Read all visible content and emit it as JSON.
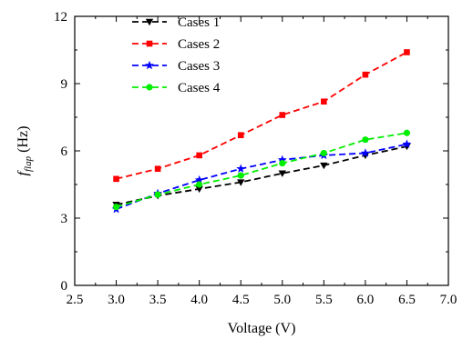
{
  "chart_data": {
    "type": "line",
    "xlabel": "Voltage (V)",
    "ylabel": {
      "base": "f",
      "subscript": "flap",
      "unit": " (Hz)"
    },
    "xlim": [
      2.5,
      7.0
    ],
    "ylim": [
      0,
      12
    ],
    "x_ticks": [
      "2.5",
      "3.0",
      "3.5",
      "4.0",
      "4.5",
      "5.0",
      "5.5",
      "6.0",
      "6.5",
      "7.0"
    ],
    "y_ticks": [
      "0",
      "3",
      "6",
      "9",
      "12"
    ],
    "grid": false,
    "legend_position": "top-left",
    "x": [
      3.0,
      3.5,
      4.0,
      4.5,
      5.0,
      5.5,
      6.0,
      6.5
    ],
    "series": [
      {
        "name": "Cases 1",
        "color": "#000000",
        "marker": "triangle-down",
        "values": [
          3.6,
          4.0,
          4.3,
          4.6,
          5.0,
          5.35,
          5.8,
          6.2
        ]
      },
      {
        "name": "Cases 2",
        "color": "#ff0000",
        "marker": "square",
        "values": [
          4.75,
          5.2,
          5.8,
          6.7,
          7.6,
          8.2,
          9.4,
          10.4
        ]
      },
      {
        "name": "Cases 3",
        "color": "#0000ff",
        "marker": "star",
        "values": [
          3.4,
          4.1,
          4.7,
          5.2,
          5.6,
          5.8,
          5.9,
          6.3
        ]
      },
      {
        "name": "Cases 4",
        "color": "#00ee00",
        "marker": "circle",
        "values": [
          3.5,
          4.05,
          4.5,
          4.9,
          5.45,
          5.9,
          6.5,
          6.8
        ]
      }
    ]
  }
}
